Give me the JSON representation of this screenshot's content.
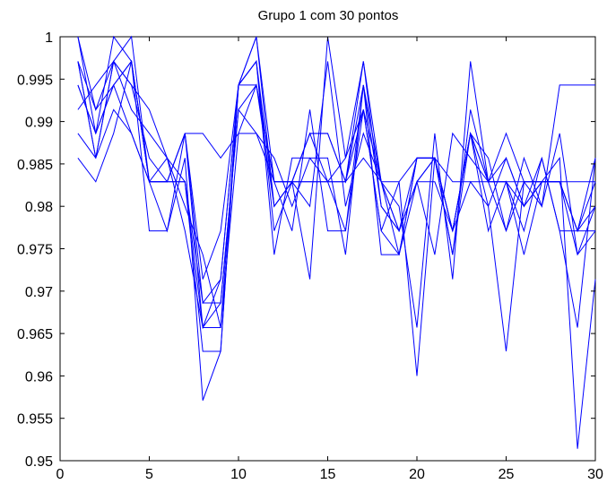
{
  "chart_data": {
    "type": "line",
    "title": "Grupo 1 com 30 pontos",
    "xlabel": "",
    "ylabel": "",
    "xlim": [
      0,
      30
    ],
    "ylim": [
      0.95,
      1
    ],
    "xticks": [
      0,
      5,
      10,
      15,
      20,
      25,
      30
    ],
    "xtick_labels": [
      "0",
      "5",
      "10",
      "15",
      "20",
      "25",
      "30"
    ],
    "yticks": [
      0.95,
      0.955,
      0.96,
      0.965,
      0.97,
      0.975,
      0.98,
      0.985,
      0.99,
      0.995,
      1
    ],
    "ytick_labels": [
      "0.95",
      "0.955",
      "0.96",
      "0.965",
      "0.97",
      "0.975",
      "0.98",
      "0.985",
      "0.99",
      "0.995",
      "1"
    ],
    "grid": false,
    "legend": "none",
    "line_color": "#0000ff",
    "x": [
      1,
      2,
      3,
      4,
      5,
      6,
      7,
      8,
      9,
      10,
      11,
      12,
      13,
      14,
      15,
      16,
      17,
      18,
      19,
      20,
      21,
      22,
      23,
      24,
      25,
      26,
      27,
      28,
      29,
      30
    ],
    "series": [
      {
        "values": [
          1.0,
          0.9886,
          1.0,
          0.9971,
          0.9829,
          0.9829,
          0.9886,
          0.9657,
          0.9657,
          0.9943,
          1.0,
          0.9829,
          0.9771,
          0.9914,
          0.9771,
          0.9771,
          0.9914,
          0.9771,
          0.9743,
          0.9857,
          0.9857,
          0.9771,
          0.9886,
          0.9829,
          0.9771,
          0.9829,
          0.9829,
          0.9829,
          0.9771,
          0.9857
        ]
      },
      {
        "values": [
          0.9971,
          0.9857,
          0.9971,
          1.0,
          0.9829,
          0.9771,
          0.9886,
          0.9714,
          0.9771,
          0.9943,
          0.9943,
          0.98,
          0.9829,
          0.9886,
          0.9886,
          0.9829,
          0.9943,
          0.98,
          0.9771,
          0.9829,
          0.9857,
          0.9743,
          0.9914,
          0.9829,
          0.9829,
          0.9743,
          0.9829,
          0.9829,
          0.9743,
          0.9771
        ]
      },
      {
        "values": [
          0.9914,
          0.9943,
          0.9971,
          0.9914,
          0.9886,
          0.9857,
          0.9829,
          0.9629,
          0.9629,
          0.9943,
          0.9971,
          0.9771,
          0.9829,
          0.9714,
          1.0,
          0.9857,
          0.9971,
          0.9829,
          0.98,
          0.9657,
          0.9886,
          0.9714,
          0.9971,
          0.9829,
          0.9857,
          0.98,
          0.9857,
          0.9771,
          0.9657,
          0.9857
        ]
      },
      {
        "values": [
          0.9857,
          0.9829,
          0.9886,
          0.9971,
          0.9771,
          0.9771,
          0.9857,
          0.9571,
          0.9629,
          0.9943,
          0.9971,
          0.9743,
          0.9857,
          0.9857,
          0.9829,
          0.9857,
          0.9914,
          0.9771,
          0.9829,
          0.96,
          0.9857,
          0.9771,
          0.9829,
          0.98,
          0.9629,
          0.9829,
          0.9829,
          0.9857,
          0.9514,
          0.9714
        ]
      },
      {
        "values": [
          0.9971,
          0.9914,
          0.9943,
          0.9886,
          0.9829,
          0.9829,
          0.9829,
          0.9686,
          0.9686,
          0.9914,
          0.9886,
          0.9857,
          0.98,
          0.9857,
          0.9857,
          0.9743,
          0.9943,
          0.9829,
          0.9771,
          0.9829,
          0.9743,
          0.9886,
          0.9857,
          0.9829,
          0.9886,
          0.9829,
          0.98,
          0.9943,
          0.9943,
          0.9943
        ]
      },
      {
        "values": [
          0.9943,
          0.9886,
          0.9943,
          0.9971,
          0.9829,
          0.9857,
          0.98,
          0.9743,
          0.9657,
          0.9886,
          0.9943,
          0.9829,
          0.9829,
          0.98,
          0.9971,
          0.98,
          0.9886,
          0.9829,
          0.9743,
          0.9829,
          0.9829,
          0.9771,
          0.9886,
          0.9771,
          0.9829,
          0.9771,
          0.9857,
          0.9771,
          0.9771,
          0.9829
        ]
      },
      {
        "values": [
          0.9971,
          0.9857,
          0.9971,
          0.9943,
          0.9914,
          0.9857,
          0.9771,
          0.9657,
          0.9714,
          0.9943,
          0.9971,
          0.98,
          0.9829,
          0.9829,
          0.9829,
          0.9771,
          0.9943,
          0.9743,
          0.9743,
          0.9857,
          0.9857,
          0.9771,
          0.9886,
          0.9857,
          0.9771,
          0.9857,
          0.98,
          0.9886,
          0.9743,
          0.98
        ]
      },
      {
        "values": [
          1.0,
          0.9914,
          0.9971,
          0.9943,
          0.9857,
          0.9829,
          0.9886,
          0.9686,
          0.9714,
          0.9943,
          1.0,
          0.98,
          0.9829,
          0.9886,
          0.9829,
          0.9829,
          0.9971,
          0.98,
          0.9771,
          0.9857,
          0.9857,
          0.9743,
          0.9886,
          0.98,
          0.9857,
          0.98,
          0.9829,
          0.9829,
          0.9771,
          0.9771
        ]
      },
      {
        "values": [
          0.9886,
          0.9857,
          0.9914,
          0.9886,
          0.9829,
          0.9829,
          0.9886,
          0.9886,
          0.9857,
          0.9886,
          0.9886,
          0.9829,
          0.9829,
          0.9829,
          0.9829,
          0.9829,
          0.9857,
          0.9829,
          0.9829,
          0.9857,
          0.9857,
          0.9829,
          0.9829,
          0.9829,
          0.9829,
          0.9829,
          0.9829,
          0.9829,
          0.9829,
          0.9829
        ]
      },
      {
        "values": [
          0.9943,
          0.9886,
          0.9943,
          0.9971,
          0.9829,
          0.9829,
          0.9829,
          0.9657,
          0.9686,
          0.9914,
          0.9943,
          0.9829,
          0.9829,
          0.9886,
          0.9886,
          0.9829,
          0.9914,
          0.9829,
          0.9771,
          0.9829,
          0.9857,
          0.9771,
          0.9886,
          0.9829,
          0.9829,
          0.98,
          0.9829,
          0.9829,
          0.9771,
          0.98
        ]
      }
    ]
  }
}
